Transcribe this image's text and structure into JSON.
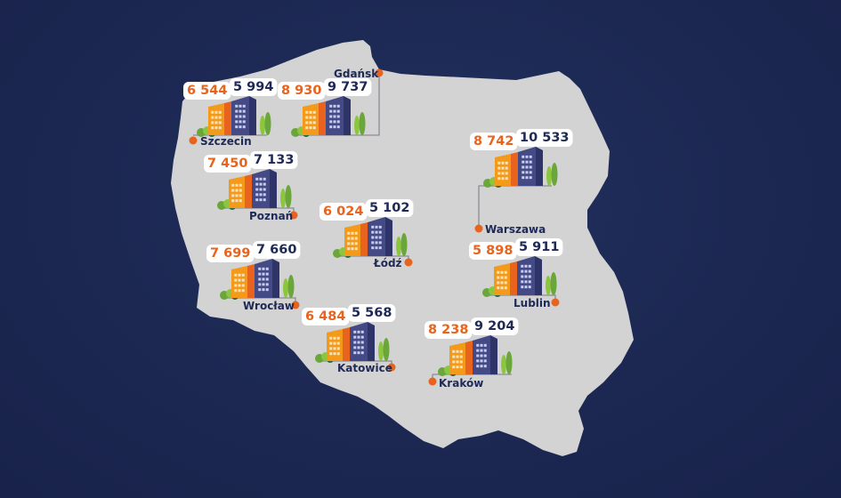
{
  "colors": {
    "background": "#1c2852",
    "country_fill": "#d3d3d4",
    "accent_orange": "#e8641e",
    "building_orange": "#f39a1a",
    "building_navy": "#434a86",
    "text_navy": "#1e2a55",
    "tree_green": "#8cc63f"
  },
  "cities": [
    {
      "name": "Gdańsk",
      "value_orange": "8 930",
      "value_navy": "9 737"
    },
    {
      "name": "Szczecin",
      "value_orange": "6 544",
      "value_navy": "5 994"
    },
    {
      "name": "Poznań",
      "value_orange": "7 450",
      "value_navy": "7 133"
    },
    {
      "name": "Warszawa",
      "value_orange": "8 742",
      "value_navy": "10 533"
    },
    {
      "name": "Łódź",
      "value_orange": "6 024",
      "value_navy": "5 102"
    },
    {
      "name": "Wrocław",
      "value_orange": "7 699",
      "value_navy": "7 660"
    },
    {
      "name": "Lublin",
      "value_orange": "5 898",
      "value_navy": "5 911"
    },
    {
      "name": "Katowice",
      "value_orange": "6 484",
      "value_navy": "5 568"
    },
    {
      "name": "Kraków",
      "value_orange": "8 238",
      "value_navy": "9 204"
    }
  ]
}
